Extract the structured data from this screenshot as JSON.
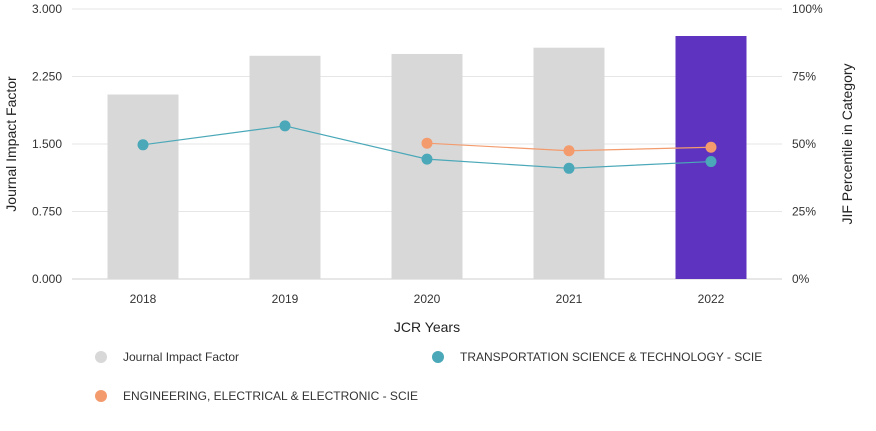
{
  "chart_data": {
    "type": "bar",
    "categories": [
      "2018",
      "2019",
      "2020",
      "2021",
      "2022"
    ],
    "xlabel": "JCR Years",
    "ylabel_left": "Journal Impact Factor",
    "ylabel_right": "JIF Percentile in Category",
    "left_axis": {
      "ylim": [
        0,
        3
      ],
      "ticks": [
        "0.000",
        "0.750",
        "1.500",
        "2.250",
        "3.000"
      ],
      "tick_values": [
        0,
        0.75,
        1.5,
        2.25,
        3
      ]
    },
    "right_axis": {
      "ylim": [
        0,
        100
      ],
      "ticks": [
        "0%",
        "25%",
        "50%",
        "75%",
        "100%"
      ],
      "tick_values": [
        0,
        25,
        50,
        75,
        100
      ]
    },
    "grid": true,
    "legend_position": "bottom",
    "series": [
      {
        "name": "Journal Impact Factor",
        "kind": "bar",
        "axis": "left",
        "values": [
          2.05,
          2.48,
          2.5,
          2.57,
          2.7
        ],
        "color": "#d8d8d8",
        "highlight_color": "#5e33bf",
        "highlight_index": 4
      },
      {
        "name": "TRANSPORTATION SCIENCE & TECHNOLOGY - SCIE",
        "kind": "line",
        "axis": "right",
        "values": [
          49.7,
          56.7,
          44.4,
          41,
          43.5
        ],
        "color": "#4aa8b8"
      },
      {
        "name": "ENGINEERING, ELECTRICAL & ELECTRONIC - SCIE",
        "kind": "line",
        "axis": "right",
        "values": [
          null,
          null,
          50.3,
          47.5,
          48.8
        ],
        "color": "#f39b6d"
      }
    ]
  }
}
